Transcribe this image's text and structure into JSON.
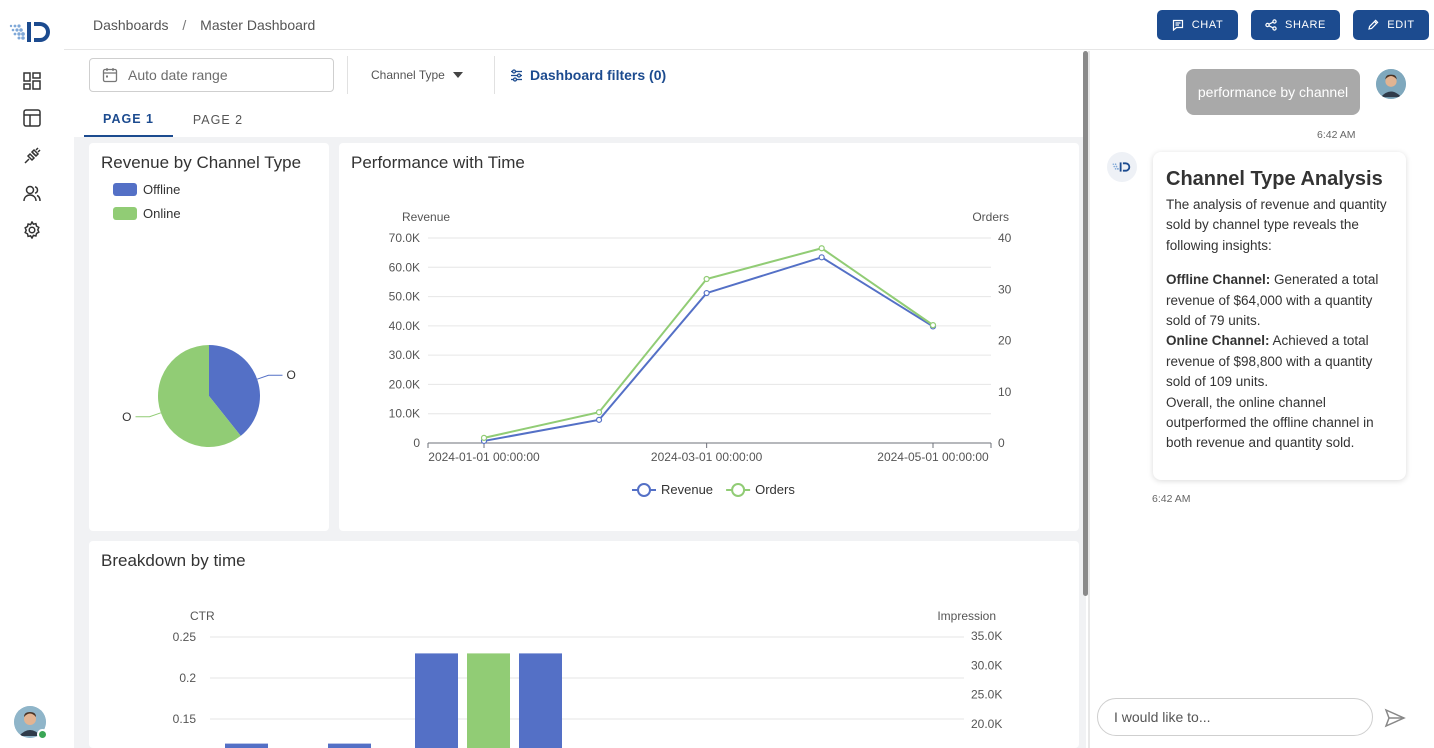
{
  "breadcrumb": {
    "root": "Dashboards",
    "separator": "/",
    "current": "Master Dashboard"
  },
  "header_buttons": {
    "chat": "CHAT",
    "share": "SHARE",
    "edit": "EDIT"
  },
  "filters": {
    "date_placeholder": "Auto date range",
    "channel_type": "Channel Type",
    "dashboard_filters": "Dashboard filters (0)"
  },
  "tabs": [
    {
      "label": "PAGE 1"
    },
    {
      "label": "PAGE 2"
    }
  ],
  "colors": {
    "accent": "#1c4b8f",
    "offline": "#5470c6",
    "online": "#91cc75"
  },
  "cards": {
    "revenue": {
      "title": "Revenue by Channel Type"
    },
    "performance": {
      "title": "Performance with Time"
    },
    "breakdown": {
      "title": "Breakdown by time"
    }
  },
  "chart_data": [
    {
      "type": "pie",
      "title": "Revenue by Channel Type",
      "legend": [
        "Offline",
        "Online"
      ],
      "slices": [
        {
          "name": "Offline",
          "value": 64000,
          "label": "O"
        },
        {
          "name": "Online",
          "value": 98800,
          "label": "O"
        }
      ],
      "legend_position": "top-left"
    },
    {
      "type": "line",
      "title": "Performance with Time",
      "ylabel": "Revenue",
      "y2label": "Orders",
      "ylim": [
        0,
        70000
      ],
      "y2lim": [
        0,
        40
      ],
      "yticks": [
        "0",
        "10.0K",
        "20.0K",
        "30.0K",
        "40.0K",
        "50.0K",
        "60.0K",
        "70.0K"
      ],
      "y2ticks": [
        "0",
        "10",
        "20",
        "30",
        "40"
      ],
      "xticks": [
        "2024-01-01 00:00:00",
        "2024-03-01 00:00:00",
        "2024-05-01 00:00:00"
      ],
      "x": [
        "2024-01-01",
        "2024-02-01",
        "2024-03-01",
        "2024-04-01",
        "2024-05-01"
      ],
      "series": [
        {
          "name": "Revenue",
          "axis": "left",
          "values": [
            700,
            7900,
            51200,
            63400,
            39800
          ]
        },
        {
          "name": "Orders",
          "axis": "right",
          "values": [
            1,
            6,
            32,
            38,
            23
          ]
        }
      ],
      "legend_position": "bottom-center",
      "grid": true
    },
    {
      "type": "bar",
      "title": "Breakdown by time",
      "ylabel": "CTR",
      "y2label": "Impression",
      "yticks": [
        "0.15",
        "0.2",
        "0.25"
      ],
      "y2ticks": [
        "20.0K",
        "25.0K",
        "30.0K",
        "35.0K"
      ],
      "bars": [
        {
          "value": 0.12,
          "color": "offline"
        },
        {
          "value": 0.12,
          "color": "offline"
        },
        {
          "value": 0.23,
          "color": "offline"
        },
        {
          "value": 0.23,
          "color": "online"
        },
        {
          "value": 0.23,
          "color": "offline"
        }
      ]
    }
  ],
  "chat": {
    "user_message": "performance by channel",
    "user_time": "6:42 AM",
    "bot_time": "6:42 AM",
    "bot_title": "Channel Type Analysis",
    "bot_intro": "The analysis of revenue and quantity sold by channel type reveals the following insights:",
    "offline_label": "Offline Channel:",
    "offline_text": " Generated a total revenue of $64,000 with a quantity sold of 79 units.",
    "online_label": "Online Channel:",
    "online_text": " Achieved a total revenue of $98,800 with a quantity sold of 109 units.",
    "conclusion": "Overall, the online channel outperformed the offline channel in both revenue and quantity sold.",
    "input_placeholder": "I would like to..."
  }
}
